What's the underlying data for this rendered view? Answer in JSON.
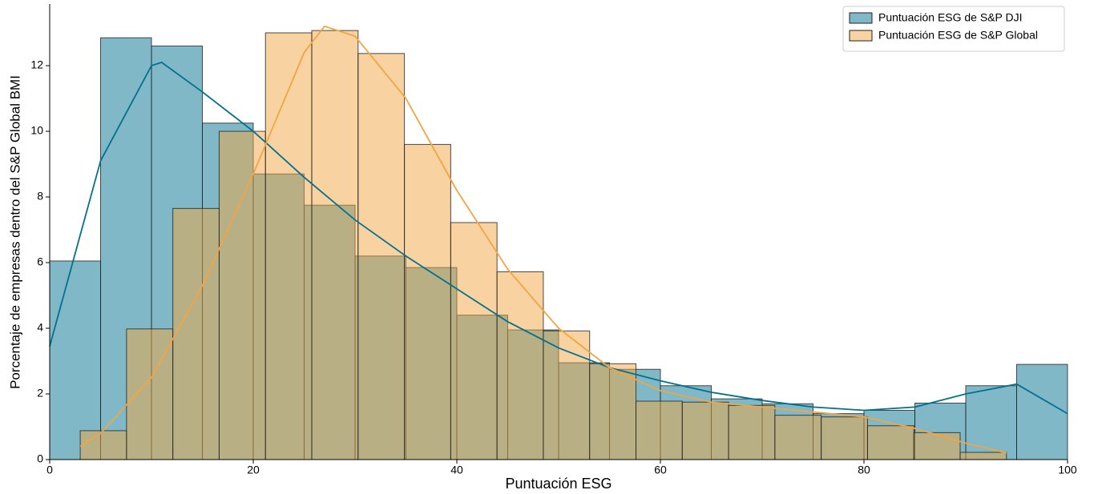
{
  "chart_data": {
    "type": "histogram",
    "x_label": "Puntuación ESG",
    "y_label": "Porcentaje de empresas dentro del S&P Global BMI",
    "xlim": [
      0,
      100
    ],
    "xticks": [
      0,
      20,
      40,
      60,
      80,
      100
    ],
    "ylim": [
      0,
      14
    ],
    "yticks": [
      0,
      2,
      4,
      6,
      8,
      10,
      12
    ],
    "legend": "upper right",
    "series": [
      {
        "name": "Puntuación ESG de S&P DJI",
        "color": "#02718f",
        "bins": [
          0,
          5,
          10,
          15,
          20,
          25,
          30,
          35,
          40,
          45,
          50,
          55,
          60,
          65,
          70,
          75,
          80,
          85,
          90,
          95,
          100
        ],
        "values": [
          6.05,
          12.85,
          12.6,
          10.25,
          8.7,
          7.75,
          6.2,
          5.85,
          4.4,
          3.95,
          2.95,
          2.75,
          2.25,
          1.85,
          1.7,
          1.4,
          1.5,
          1.72,
          2.25,
          2.9
        ],
        "kde_x": [
          0,
          5,
          10,
          11,
          15,
          20,
          25,
          30,
          35,
          40,
          45,
          50,
          55,
          60,
          65,
          70,
          75,
          80,
          85,
          90,
          95,
          100
        ],
        "kde_y": [
          3.45,
          9.1,
          12.0,
          12.1,
          11.2,
          10.0,
          8.6,
          7.3,
          6.2,
          5.2,
          4.2,
          3.4,
          2.8,
          2.4,
          2.05,
          1.8,
          1.6,
          1.5,
          1.6,
          2.0,
          2.3,
          1.4
        ]
      },
      {
        "name": "Puntuación ESG de S&P Global",
        "color": "#f2a541",
        "bins": [
          3,
          7.55,
          12.1,
          16.65,
          21.2,
          25.75,
          30.3,
          34.85,
          39.4,
          43.95,
          48.5,
          53.05,
          57.6,
          62.15,
          66.7,
          71.25,
          75.8,
          80.35,
          84.9,
          89.45,
          94
        ],
        "values": [
          0.88,
          3.98,
          7.65,
          10.0,
          13.0,
          13.07,
          12.37,
          9.6,
          7.22,
          5.72,
          3.92,
          2.92,
          1.78,
          1.75,
          1.65,
          1.35,
          1.3,
          1.03,
          0.82,
          0.22
        ],
        "kde_x": [
          3,
          5,
          10,
          15,
          20,
          25,
          27,
          30,
          35,
          40,
          45,
          50,
          55,
          60,
          65,
          70,
          75,
          80,
          85,
          90,
          94
        ],
        "kde_y": [
          0.4,
          0.8,
          2.5,
          5.3,
          8.7,
          12.4,
          13.2,
          12.9,
          11.0,
          8.2,
          5.8,
          4.0,
          2.8,
          2.1,
          1.75,
          1.6,
          1.45,
          1.3,
          0.95,
          0.5,
          0.2
        ]
      }
    ]
  }
}
